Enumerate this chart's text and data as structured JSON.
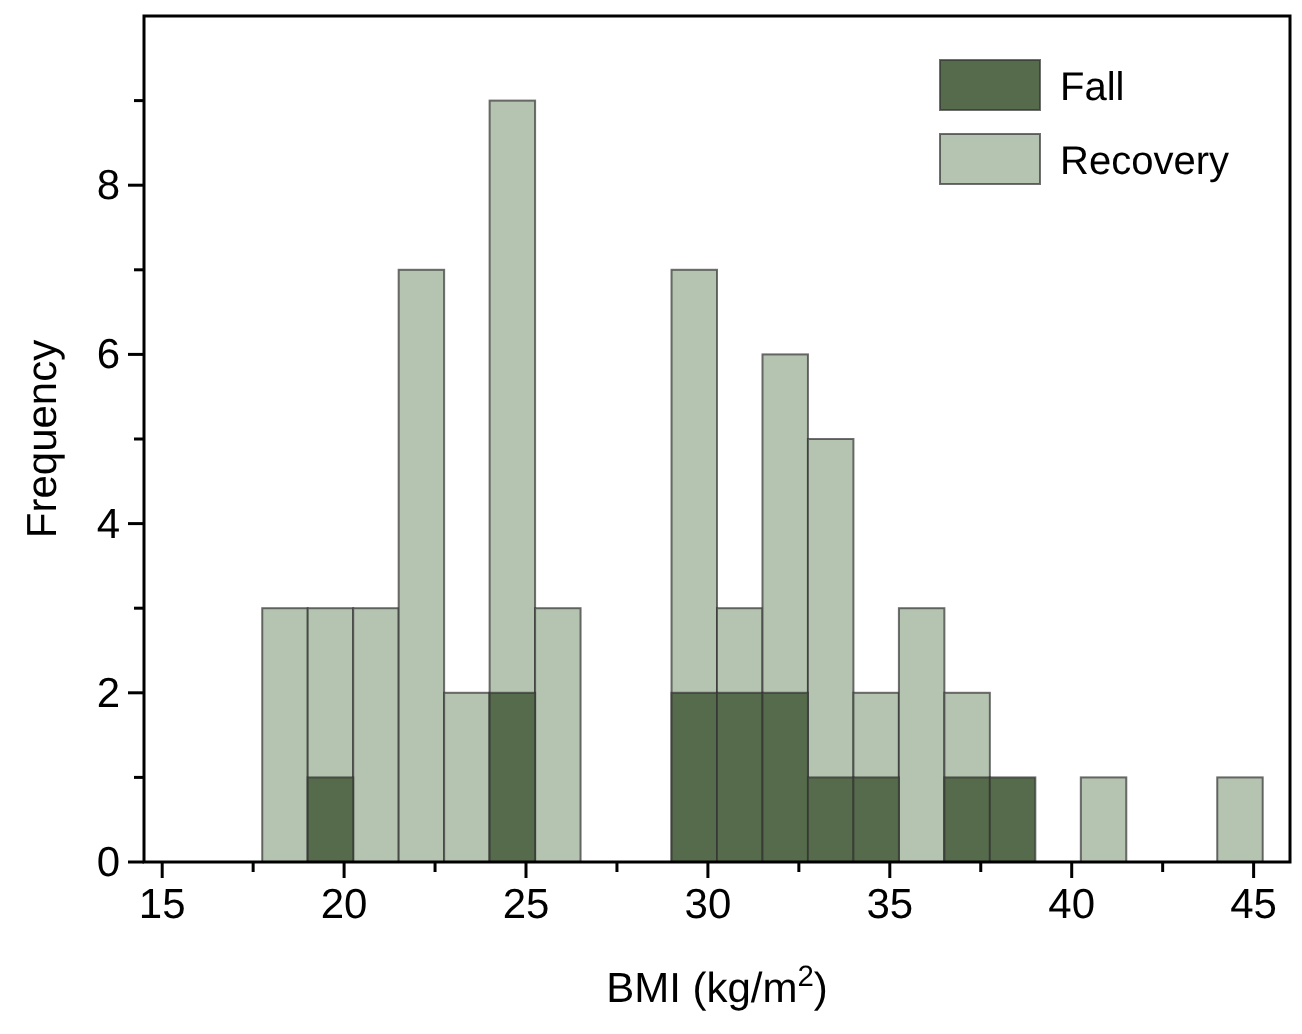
{
  "chart_data": {
    "type": "histogram",
    "xlabel": "BMI (kg/m$^{2}$)",
    "ylabel": "Frequency",
    "bins": [
      17.75,
      19,
      20.25,
      21.5,
      22.75,
      24,
      25.25,
      26.5,
      27.75,
      29,
      30.25,
      31.5,
      32.75,
      34,
      35.25,
      36.5,
      37.75,
      39,
      40.25,
      41.5,
      42.75,
      44,
      45.25
    ],
    "series": [
      {
        "name": "Recovery",
        "color": "#b4c4b0",
        "values": [
          3,
          3,
          3,
          7,
          2,
          9,
          3,
          0,
          0,
          7,
          3,
          6,
          5,
          2,
          3,
          2,
          null,
          0,
          1,
          0,
          0,
          1
        ]
      },
      {
        "name": "Fall",
        "color": "#556b4b",
        "values": [
          0,
          1,
          0,
          0,
          0,
          2,
          0,
          0,
          0,
          2,
          2,
          2,
          1,
          1,
          0,
          1,
          1,
          0,
          0,
          0,
          0,
          0
        ]
      }
    ],
    "xlim": [
      14.5,
      46
    ],
    "xticks": [
      {
        "value": 15,
        "label": "15"
      },
      {
        "value": 17.5,
        "label": null
      },
      20,
      {
        "value": 22.5,
        "label": null
      },
      25,
      {
        "value": 27.5,
        "label": null
      },
      30,
      {
        "value": 32.5,
        "label": null
      },
      35,
      {
        "value": 37.5,
        "label": null
      },
      40,
      {
        "value": 42.5,
        "label": null
      },
      45
    ],
    "ylim": [
      0,
      10
    ],
    "yticks": [
      0,
      {
        "value": 1,
        "label": null
      },
      2,
      {
        "value": 3,
        "label": null
      },
      4,
      {
        "value": 5,
        "label": null
      },
      6,
      {
        "value": 7,
        "label": null
      },
      8,
      {
        "value": 9,
        "label": null
      }
    ],
    "grid": false,
    "legend": "top right"
  }
}
